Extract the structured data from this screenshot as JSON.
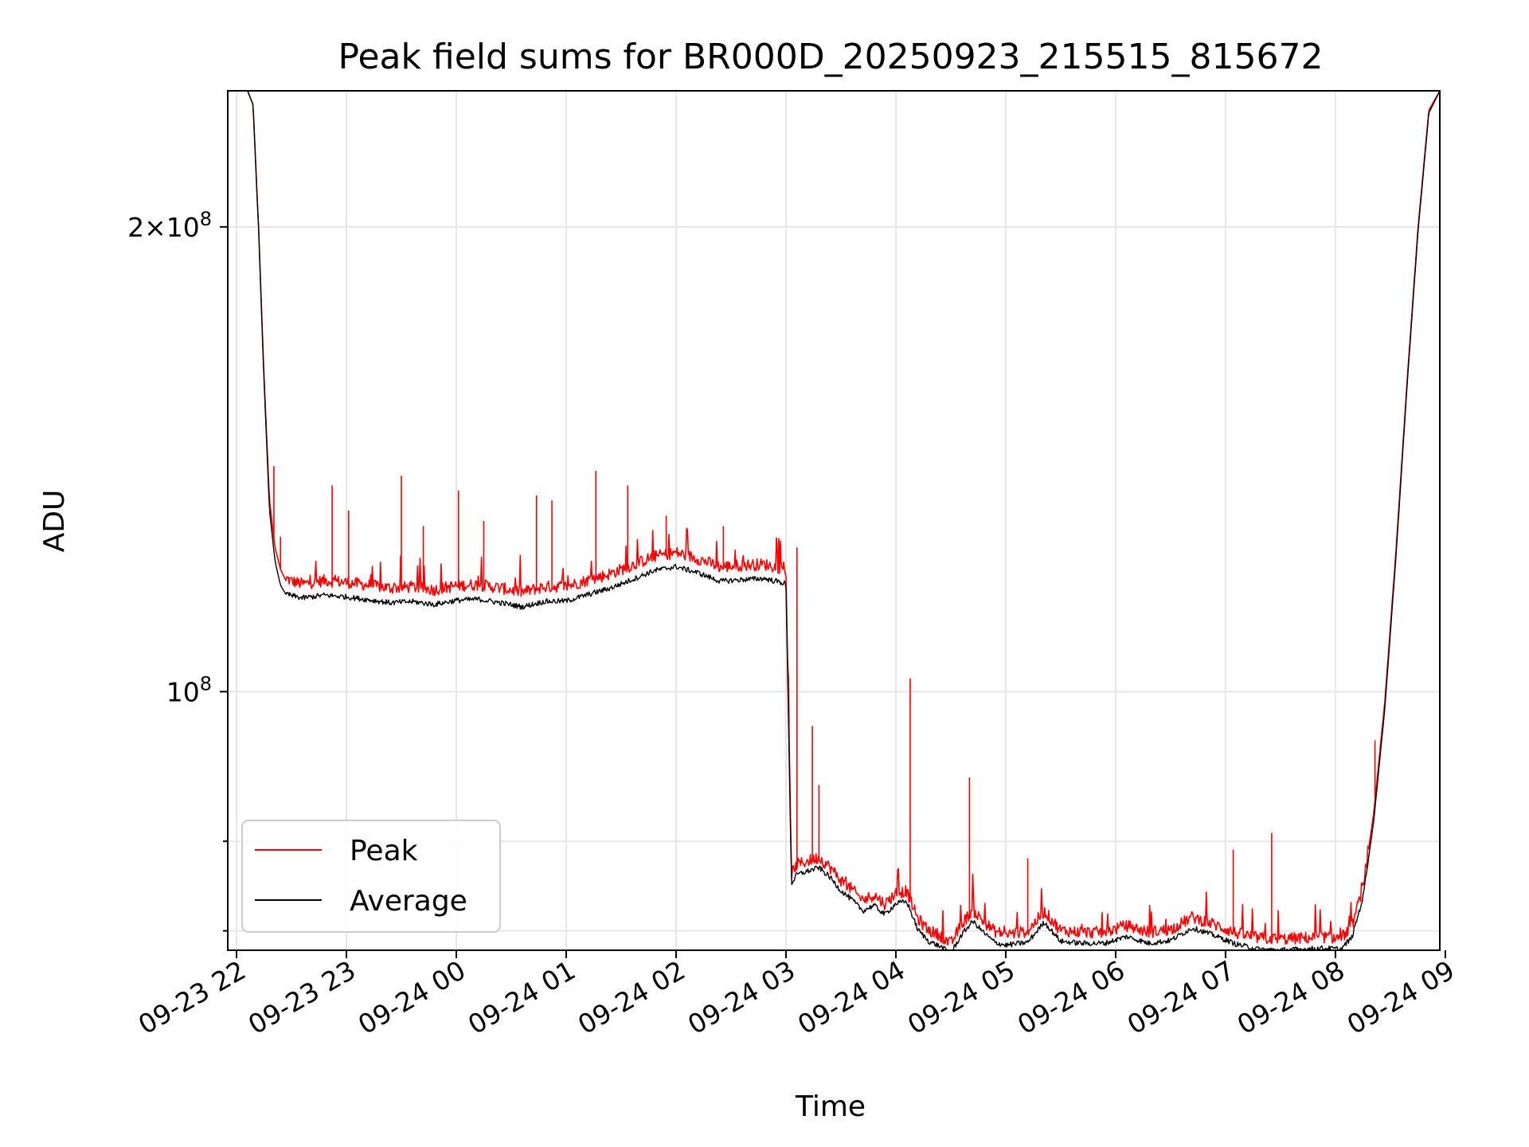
{
  "chart_data": {
    "type": "line",
    "title": "Peak field sums for BR000D_20250923_215515_815672",
    "xlabel": "Time",
    "ylabel": "ADU",
    "yscale": "log",
    "xlim_hours": [
      -0.08,
      10.95
    ],
    "ylim": [
      68000000,
      245000000
    ],
    "x_ticks": [
      {
        "hour": 0,
        "label": "09-23 22"
      },
      {
        "hour": 1,
        "label": "09-23 23"
      },
      {
        "hour": 2,
        "label": "09-24 00"
      },
      {
        "hour": 3,
        "label": "09-24 01"
      },
      {
        "hour": 4,
        "label": "09-24 02"
      },
      {
        "hour": 5,
        "label": "09-24 03"
      },
      {
        "hour": 6,
        "label": "09-24 04"
      },
      {
        "hour": 7,
        "label": "09-24 05"
      },
      {
        "hour": 8,
        "label": "09-24 06"
      },
      {
        "hour": 9,
        "label": "09-24 07"
      },
      {
        "hour": 10,
        "label": "09-24 08"
      },
      {
        "hour": 11,
        "label": "09-24 09"
      }
    ],
    "y_major_ticks": [
      {
        "value": 100000000,
        "mantissa": "",
        "exponent": "8"
      },
      {
        "value": 200000000,
        "mantissa": "2",
        "exponent": "8"
      }
    ],
    "y_minor_ticks": [
      70000000,
      80000000
    ],
    "grid": true,
    "legend": {
      "position": "lower-left"
    },
    "series": [
      {
        "name": "Peak",
        "color": "#ff0000",
        "x_hours": [
          -0.08,
          0.05,
          0.1,
          0.15,
          0.2,
          0.25,
          0.3,
          0.35,
          0.4,
          0.45,
          0.5,
          0.6,
          0.8,
          1.0,
          1.2,
          1.4,
          1.6,
          1.8,
          2.0,
          2.2,
          2.4,
          2.6,
          2.8,
          3.0,
          3.2,
          3.4,
          3.6,
          3.8,
          4.0,
          4.2,
          4.4,
          4.6,
          4.8,
          5.0,
          5.05,
          5.1,
          5.2,
          5.3,
          5.4,
          5.5,
          5.6,
          5.7,
          5.8,
          5.9,
          6.0,
          6.1,
          6.2,
          6.3,
          6.4,
          6.5,
          6.6,
          6.7,
          6.8,
          6.9,
          7.0,
          7.2,
          7.35,
          7.5,
          7.7,
          7.9,
          8.1,
          8.3,
          8.5,
          8.7,
          8.9,
          9.1,
          9.3,
          9.5,
          9.7,
          9.9,
          10.05,
          10.15,
          10.25,
          10.35,
          10.45,
          10.55,
          10.65,
          10.75,
          10.85,
          10.95
        ],
        "values": [
          245000000,
          245000000,
          245000000,
          240000000,
          200000000,
          160000000,
          133000000,
          124000000,
          120000000,
          118000000,
          117500000,
          117000000,
          117600000,
          117300000,
          116800000,
          116300000,
          116500000,
          116000000,
          116700000,
          116900000,
          116300000,
          115600000,
          116500000,
          116600000,
          117700000,
          118800000,
          120300000,
          121900000,
          122600000,
          121500000,
          120000000,
          120300000,
          120500000,
          119600000,
          76000000,
          77000000,
          77400000,
          77800000,
          76700000,
          75200000,
          74200000,
          73000000,
          73600000,
          72600000,
          73800000,
          74000000,
          71000000,
          69800000,
          69300000,
          68400000,
          70500000,
          71900000,
          70700000,
          69700000,
          69400000,
          69700000,
          71800000,
          69800000,
          69600000,
          69600000,
          70300000,
          69600000,
          69900000,
          71200000,
          70400000,
          69500000,
          69000000,
          68900000,
          69000000,
          69100000,
          69000000,
          70200000,
          74400000,
          83600000,
          98600000,
          123000000,
          158000000,
          199000000,
          238000000,
          245000000
        ],
        "spikes": [
          {
            "hour": 0.25,
            "value": 160000000
          },
          {
            "hour": 0.34,
            "value": 140000000
          },
          {
            "hour": 0.4,
            "value": 126000000
          },
          {
            "hour": 0.87,
            "value": 136000000
          },
          {
            "hour": 1.02,
            "value": 131000000
          },
          {
            "hour": 1.5,
            "value": 138000000
          },
          {
            "hour": 1.7,
            "value": 128000000
          },
          {
            "hour": 2.02,
            "value": 135000000
          },
          {
            "hour": 2.25,
            "value": 129000000
          },
          {
            "hour": 2.73,
            "value": 134000000
          },
          {
            "hour": 2.87,
            "value": 133000000
          },
          {
            "hour": 3.27,
            "value": 139000000
          },
          {
            "hour": 3.56,
            "value": 136000000
          },
          {
            "hour": 3.91,
            "value": 130000000
          },
          {
            "hour": 4.43,
            "value": 128000000
          },
          {
            "hour": 5.1,
            "value": 124000000
          },
          {
            "hour": 5.24,
            "value": 95000000
          },
          {
            "hour": 5.3,
            "value": 87000000
          },
          {
            "hour": 6.13,
            "value": 102000000
          },
          {
            "hour": 6.67,
            "value": 88000000
          },
          {
            "hour": 7.2,
            "value": 78000000
          },
          {
            "hour": 9.07,
            "value": 79000000
          },
          {
            "hour": 9.42,
            "value": 81000000
          },
          {
            "hour": 10.36,
            "value": 93000000
          }
        ]
      },
      {
        "name": "Average",
        "color": "#000000",
        "x_hours": [
          -0.08,
          0.05,
          0.1,
          0.15,
          0.2,
          0.25,
          0.3,
          0.35,
          0.4,
          0.45,
          0.5,
          0.6,
          0.8,
          1.0,
          1.2,
          1.4,
          1.6,
          1.8,
          2.0,
          2.2,
          2.4,
          2.6,
          2.8,
          3.0,
          3.2,
          3.4,
          3.6,
          3.8,
          4.0,
          4.2,
          4.4,
          4.6,
          4.8,
          5.0,
          5.05,
          5.1,
          5.2,
          5.3,
          5.4,
          5.5,
          5.6,
          5.7,
          5.8,
          5.9,
          6.0,
          6.1,
          6.2,
          6.3,
          6.4,
          6.5,
          6.6,
          6.7,
          6.8,
          6.9,
          7.0,
          7.2,
          7.35,
          7.5,
          7.7,
          7.9,
          8.1,
          8.3,
          8.5,
          8.7,
          8.9,
          9.1,
          9.3,
          9.5,
          9.7,
          9.9,
          10.05,
          10.15,
          10.25,
          10.35,
          10.45,
          10.55,
          10.65,
          10.75,
          10.85,
          10.95
        ],
        "values": [
          245000000,
          245000000,
          245000000,
          240000000,
          200000000,
          159000000,
          131000000,
          121500000,
          117200000,
          115600000,
          115200000,
          114800000,
          115300000,
          115000000,
          114500000,
          114000000,
          114200000,
          113700000,
          114400000,
          114600000,
          114000000,
          113300000,
          114200000,
          114300000,
          115400000,
          116500000,
          118000000,
          119600000,
          120300000,
          119200000,
          117700000,
          118000000,
          118200000,
          117300000,
          75000000,
          76000000,
          76400000,
          76800000,
          75700000,
          74200000,
          73200000,
          72000000,
          72600000,
          71600000,
          72800000,
          73000000,
          70000000,
          68800000,
          68300000,
          67600000,
          69500000,
          70900000,
          69700000,
          68700000,
          68400000,
          68700000,
          70800000,
          68800000,
          68600000,
          68600000,
          69300000,
          68600000,
          68900000,
          70200000,
          69400000,
          68500000,
          68000000,
          67900000,
          68000000,
          68100000,
          68000000,
          69200000,
          73400000,
          82600000,
          97600000,
          122000000,
          157000000,
          198000000,
          237000000,
          245000000
        ]
      }
    ]
  }
}
